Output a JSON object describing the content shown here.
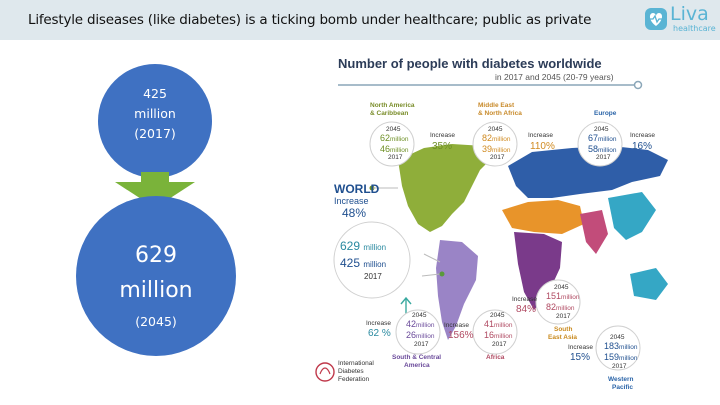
{
  "slide": {
    "title": "Lifestyle diseases (like diabetes) is a ticking bomb under healthcare; public as private"
  },
  "logo": {
    "name": "Liva",
    "sub": "healthcare",
    "icon": "heart-shield-icon"
  },
  "circles": {
    "small": {
      "number": "425",
      "unit": "million",
      "year": "(2017)"
    },
    "big": {
      "number": "629",
      "unit": "million",
      "year": "(2045)"
    }
  },
  "infographic": {
    "title": "Number of people with diabetes worldwide",
    "subtitle": "in 2017 and 2045 (20-79 years)",
    "world": {
      "label": "WORLD",
      "increase_label": "Increase",
      "increase_pct": "48%",
      "v2045": "629",
      "v2017": "425",
      "unit": "million",
      "year_2017": "2017"
    },
    "north_america": {
      "name_line1": "North America",
      "name_line2": "& Caribbean",
      "y2045": "2045",
      "v2045": "62",
      "v2017": "46",
      "unit": "million",
      "y2017": "2017",
      "increase_label": "Increase",
      "pct": "35%"
    },
    "mena": {
      "name_line1": "Middle East",
      "name_line2": "& North Africa",
      "y2045": "2045",
      "v2045": "82",
      "v2017": "39",
      "unit": "million",
      "y2017": "2017",
      "increase_label": "Increase",
      "pct": "110%"
    },
    "europe": {
      "name": "Europe",
      "y2045": "2045",
      "v2045": "67",
      "v2017": "58",
      "unit": "million",
      "y2017": "2017",
      "increase_label": "Increase",
      "pct": "16%"
    },
    "south_america": {
      "name_line1": "South & Central",
      "name_line2": "America",
      "y2045": "2045",
      "v2045": "42",
      "v2017": "26",
      "unit": "million",
      "y2017": "2017",
      "increase_label": "Increase",
      "pct": "62 %"
    },
    "africa": {
      "name": "Africa",
      "y2045": "2045",
      "v2045": "41",
      "v2017": "16",
      "unit": "million",
      "y2017": "2017",
      "increase_label": "Increase",
      "pct": "156%"
    },
    "south_east_asia": {
      "name_line1": "South",
      "name_line2": "East Asia",
      "y2045": "2045",
      "v2045": "151",
      "v2017": "82",
      "unit": "million",
      "y2017": "2017",
      "increase_label": "Increase",
      "pct": "84%"
    },
    "western_pacific": {
      "name_line1": "Western",
      "name_line2": "Pacific",
      "y2045": "2045",
      "v2045": "183",
      "v2017": "159",
      "unit": "million",
      "y2017": "2017",
      "increase_label": "Increase",
      "pct": "15%"
    },
    "idf": {
      "line1": "International",
      "line2": "Diabetes",
      "line3": "Federation"
    },
    "colors": {
      "north_america": "#8fae3a",
      "south_america": "#9a84c6",
      "europe": "#2f5ea8",
      "mena": "#e8942a",
      "africa": "#7a3a8a",
      "south_east_asia": "#c24c7a",
      "western_pacific": "#35a7c5"
    }
  }
}
